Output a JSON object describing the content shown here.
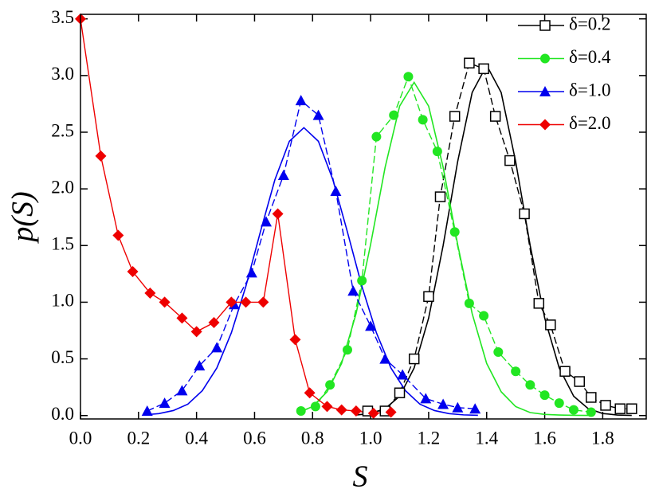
{
  "chart_data": {
    "type": "line",
    "xlabel": "S",
    "ylabel": "p(S)",
    "xlim": [
      0,
      1.95
    ],
    "ylim": [
      -0.03,
      3.54
    ],
    "xticks": [
      {
        "value": 0,
        "label": "0.0"
      },
      {
        "value": 0.2,
        "label": "0.2"
      },
      {
        "value": 0.4,
        "label": "0.4"
      },
      {
        "value": 0.6,
        "label": "0.6"
      },
      {
        "value": 0.8,
        "label": "0.8"
      },
      {
        "value": 1,
        "label": "1.0"
      },
      {
        "value": 1.2,
        "label": "1.2"
      },
      {
        "value": 1.4,
        "label": "1.4"
      },
      {
        "value": 1.6,
        "label": "1.6"
      },
      {
        "value": 1.8,
        "label": "1.8"
      }
    ],
    "yticks": [
      {
        "value": 0,
        "label": "0.0"
      },
      {
        "value": 0.5,
        "label": "0.5"
      },
      {
        "value": 1,
        "label": "1.0"
      },
      {
        "value": 1.5,
        "label": "1.5"
      },
      {
        "value": 2,
        "label": "2.0"
      },
      {
        "value": 2.5,
        "label": "2.5"
      },
      {
        "value": 3,
        "label": "3.0"
      },
      {
        "value": 3.5,
        "label": "3.5"
      }
    ],
    "legend": "upper right",
    "series": [
      {
        "name": "δ=0.2",
        "color": "#000000",
        "marker": "open-square",
        "line": "dashed",
        "x": [
          0.99,
          1.05,
          1.1,
          1.15,
          1.2,
          1.24,
          1.29,
          1.34,
          1.39,
          1.43,
          1.48,
          1.53,
          1.58,
          1.62,
          1.67,
          1.72,
          1.76,
          1.81,
          1.86,
          1.9
        ],
        "values": [
          0.04,
          0.04,
          0.2,
          0.5,
          1.05,
          1.93,
          2.64,
          3.11,
          3.06,
          2.64,
          2.25,
          1.78,
          0.99,
          0.8,
          0.39,
          0.3,
          0.16,
          0.09,
          0.06,
          0.06
        ],
        "fit": {
          "x": [
            0.95,
            1.0,
            1.05,
            1.1,
            1.15,
            1.2,
            1.25,
            1.3,
            1.35,
            1.4,
            1.45,
            1.5,
            1.55,
            1.6,
            1.65,
            1.7,
            1.75,
            1.8,
            1.85,
            1.9
          ],
          "values": [
            0.005,
            0.018,
            0.061,
            0.17,
            0.42,
            0.86,
            1.5,
            2.24,
            2.85,
            3.09,
            2.85,
            2.24,
            1.5,
            0.86,
            0.42,
            0.17,
            0.061,
            0.018,
            0.005,
            0.001
          ]
        }
      },
      {
        "name": "δ=0.4",
        "color": "#22e622",
        "marker": "circle",
        "line": "dashed",
        "x": [
          0.76,
          0.81,
          0.86,
          0.92,
          0.97,
          1.02,
          1.08,
          1.13,
          1.18,
          1.23,
          1.29,
          1.34,
          1.39,
          1.44,
          1.5,
          1.55,
          1.6,
          1.65,
          1.7,
          1.76
        ],
        "values": [
          0.04,
          0.08,
          0.27,
          0.58,
          1.19,
          2.46,
          2.65,
          2.99,
          2.61,
          2.33,
          1.62,
          0.99,
          0.88,
          0.56,
          0.39,
          0.27,
          0.18,
          0.11,
          0.05,
          0.03
        ],
        "fit": {
          "x": [
            0.75,
            0.8,
            0.85,
            0.9,
            0.95,
            1.0,
            1.05,
            1.1,
            1.15,
            1.2,
            1.25,
            1.3,
            1.35,
            1.4,
            1.45,
            1.5,
            1.55,
            1.6,
            1.65,
            1.7,
            1.75
          ],
          "values": [
            0.026,
            0.079,
            0.21,
            0.46,
            0.9,
            1.51,
            2.19,
            2.73,
            2.94,
            2.73,
            2.19,
            1.51,
            0.9,
            0.46,
            0.21,
            0.079,
            0.026,
            0.01,
            0.005,
            0.002,
            0.001
          ]
        }
      },
      {
        "name": "δ=1.0",
        "color": "#0000ee",
        "marker": "triangle",
        "line": "dashed",
        "x": [
          0.23,
          0.29,
          0.35,
          0.41,
          0.47,
          0.53,
          0.59,
          0.64,
          0.7,
          0.76,
          0.82,
          0.88,
          0.94,
          1.0,
          1.05,
          1.11,
          1.19,
          1.25,
          1.3,
          1.36
        ],
        "values": [
          0.04,
          0.11,
          0.22,
          0.44,
          0.6,
          0.98,
          1.26,
          1.71,
          2.12,
          2.78,
          2.65,
          1.98,
          1.1,
          0.79,
          0.5,
          0.36,
          0.15,
          0.1,
          0.07,
          0.06
        ],
        "fit": {
          "x": [
            0.22,
            0.27,
            0.32,
            0.37,
            0.42,
            0.47,
            0.52,
            0.57,
            0.62,
            0.67,
            0.72,
            0.77,
            0.82,
            0.87,
            0.92,
            0.97,
            1.02,
            1.07,
            1.12,
            1.17,
            1.22,
            1.27,
            1.32,
            1.37
          ],
          "values": [
            0.006,
            0.017,
            0.044,
            0.1,
            0.22,
            0.42,
            0.73,
            1.14,
            1.62,
            2.08,
            2.42,
            2.54,
            2.42,
            2.08,
            1.62,
            1.14,
            0.73,
            0.42,
            0.22,
            0.1,
            0.044,
            0.017,
            0.006,
            0.002
          ]
        }
      },
      {
        "name": "δ=2.0",
        "color": "#ee0000",
        "marker": "diamond",
        "line": "solid",
        "x": [
          0,
          0.07,
          0.13,
          0.18,
          0.24,
          0.29,
          0.35,
          0.4,
          0.46,
          0.52,
          0.57,
          0.63,
          0.68,
          0.74,
          0.79,
          0.85,
          0.9,
          0.95,
          1.01,
          1.07
        ],
        "values": [
          3.5,
          2.29,
          1.59,
          1.27,
          1.08,
          1.0,
          0.86,
          0.74,
          0.82,
          1.0,
          1.0,
          1.0,
          1.78,
          0.67,
          0.2,
          0.08,
          0.05,
          0.04,
          0.02,
          0.03
        ]
      }
    ]
  }
}
